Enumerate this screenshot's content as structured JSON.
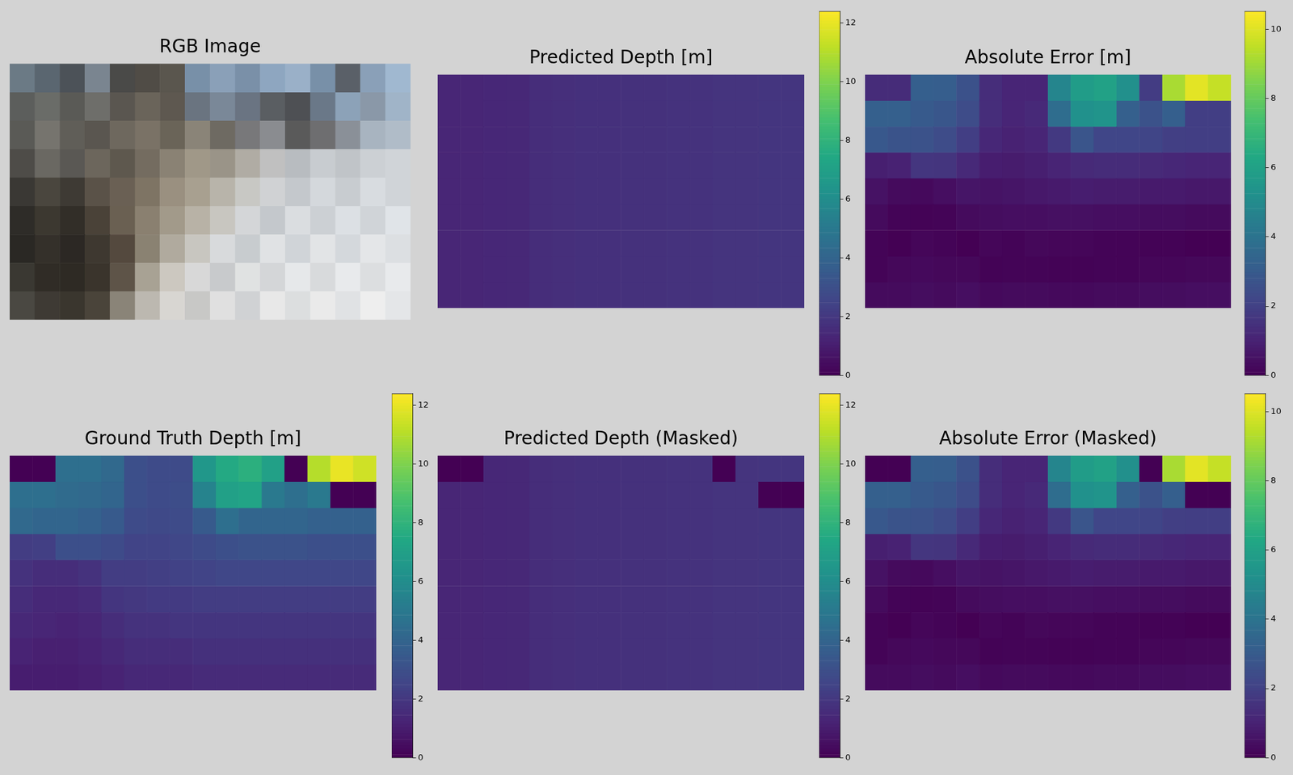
{
  "chart_data": [
    {
      "type": "image",
      "title": "RGB Image",
      "tick_labels": false,
      "colors": [
        [
          "#6b7a85",
          "#5a6670",
          "#4c5258",
          "#7a8590",
          "#4a4a48",
          "#504c46",
          "#5a564e",
          "#7890a8",
          "#8aa0b8",
          "#7a90a8",
          "#8ea6c0",
          "#9ab0c8",
          "#7890a8",
          "#5a6068",
          "#8aa0b8",
          "#a0b8d0"
        ],
        [
          "#5c5e5c",
          "#6a6c68",
          "#5a5a56",
          "#6e6e6a",
          "#5a5650",
          "#6a645a",
          "#5e5850",
          "#6a7480",
          "#7a8898",
          "#6a7482",
          "#5a5e62",
          "#4e5054",
          "#6a7888",
          "#8ca2b8",
          "#8a98a8",
          "#a0b4c8"
        ],
        [
          "#5a5a56",
          "#76746e",
          "#605e58",
          "#5a5650",
          "#6e685e",
          "#7a7266",
          "#6a6458",
          "#8a8478",
          "#6e6a62",
          "#78787a",
          "#8a8c90",
          "#5a5a5a",
          "#6e6e70",
          "#8a9098",
          "#a8b4c0",
          "#b0bcc8"
        ],
        [
          "#4e4c48",
          "#6a6862",
          "#5a5854",
          "#6c665c",
          "#5e584e",
          "#746c60",
          "#8a8274",
          "#a09888",
          "#9a9488",
          "#b0aca4",
          "#c0c0c0",
          "#b8bcc0",
          "#c8ccd0",
          "#c0c4c8",
          "#ccd0d4",
          "#d0d4d8"
        ],
        [
          "#3a3834",
          "#4a463e",
          "#3e3a34",
          "#5a5248",
          "#6a6054",
          "#7e7464",
          "#9a9080",
          "#a8a090",
          "#b8b4aa",
          "#c8c8c4",
          "#d0d2d4",
          "#c4c8cc",
          "#d4d8dc",
          "#c8ccd0",
          "#d8dce0",
          "#d0d4d8"
        ],
        [
          "#2e2c28",
          "#3c3830",
          "#322e28",
          "#4a4238",
          "#6a6052",
          "#8a8070",
          "#a29a8a",
          "#b8b2a6",
          "#c8c6c0",
          "#d4d6d8",
          "#c4c8cc",
          "#dadde0",
          "#ccd0d4",
          "#dce0e4",
          "#d0d4d8",
          "#e0e4e8"
        ],
        [
          "#2a2824",
          "#34302a",
          "#2c2824",
          "#3e3830",
          "#54493e",
          "#8a8272",
          "#b0aa9e",
          "#c8c6c0",
          "#d8dadc",
          "#c8cccf",
          "#e0e2e4",
          "#d0d4d8",
          "#e2e4e6",
          "#d4d8dc",
          "#e4e6e8",
          "#dcdfe2"
        ],
        [
          "#3a3832",
          "#302c26",
          "#2e2a24",
          "#3a342c",
          "#5e5448",
          "#a8a294",
          "#ccc8c0",
          "#d8d8d8",
          "#c8cacc",
          "#e0e2e2",
          "#d4d6d8",
          "#e6e8ea",
          "#d8dadc",
          "#e8eaec",
          "#dcdee0",
          "#e8eaec"
        ],
        [
          "#4a4842",
          "#3e3a34",
          "#3a362e",
          "#4a443a",
          "#8a8478",
          "#bcb8b0",
          "#d8d6d2",
          "#c8c8c6",
          "#e0e0e0",
          "#d0d2d4",
          "#e8e8e8",
          "#dcdedf",
          "#eaeaea",
          "#e0e2e4",
          "#eeeeee",
          "#e4e6e8"
        ]
      ]
    },
    {
      "type": "heatmap",
      "title": "Predicted Depth [m]",
      "tick_labels": false,
      "cells": [
        [
          1.3,
          1.3,
          1.35,
          1.4,
          1.6,
          1.65,
          1.7,
          1.7,
          1.75,
          1.75,
          1.8,
          1.8,
          1.85,
          1.85,
          1.9,
          1.9
        ],
        [
          1.3,
          1.3,
          1.35,
          1.4,
          1.6,
          1.65,
          1.7,
          1.7,
          1.75,
          1.75,
          1.8,
          1.8,
          1.85,
          1.85,
          1.9,
          1.9
        ],
        [
          1.3,
          1.3,
          1.35,
          1.4,
          1.6,
          1.65,
          1.7,
          1.7,
          1.75,
          1.75,
          1.8,
          1.8,
          1.85,
          1.85,
          1.9,
          1.9
        ],
        [
          1.3,
          1.3,
          1.35,
          1.4,
          1.6,
          1.65,
          1.7,
          1.7,
          1.75,
          1.75,
          1.8,
          1.8,
          1.85,
          1.85,
          1.9,
          1.9
        ],
        [
          1.3,
          1.3,
          1.35,
          1.4,
          1.6,
          1.65,
          1.7,
          1.7,
          1.75,
          1.75,
          1.8,
          1.8,
          1.85,
          1.85,
          1.9,
          1.9
        ],
        [
          1.3,
          1.3,
          1.35,
          1.4,
          1.6,
          1.65,
          1.7,
          1.7,
          1.75,
          1.75,
          1.8,
          1.8,
          1.85,
          1.85,
          1.9,
          1.9
        ],
        [
          1.3,
          1.3,
          1.35,
          1.4,
          1.6,
          1.65,
          1.7,
          1.7,
          1.75,
          1.75,
          1.8,
          1.8,
          1.85,
          1.85,
          1.9,
          1.9
        ],
        [
          1.3,
          1.3,
          1.35,
          1.4,
          1.6,
          1.65,
          1.7,
          1.7,
          1.75,
          1.75,
          1.8,
          1.8,
          1.85,
          1.85,
          1.9,
          1.9
        ],
        [
          1.3,
          1.3,
          1.35,
          1.4,
          1.6,
          1.65,
          1.7,
          1.7,
          1.75,
          1.75,
          1.8,
          1.8,
          1.85,
          1.85,
          1.9,
          1.9
        ]
      ],
      "colorbar": {
        "range": [
          0,
          12.39
        ],
        "ticks": [
          0,
          2,
          4,
          6,
          8,
          10,
          12
        ]
      }
    },
    {
      "type": "heatmap",
      "title": "Absolute Error [m]",
      "tick_labels": false,
      "cells": [
        [
          1.3,
          1.3,
          3.15,
          3.1,
          2.6,
          1.35,
          1.1,
          1.1,
          4.75,
          5.75,
          6.0,
          5.2,
          1.85,
          9.15,
          10.1,
          9.6
        ],
        [
          3.2,
          3.2,
          2.95,
          2.8,
          2.4,
          1.35,
          1.1,
          1.2,
          3.75,
          5.25,
          5.4,
          3.2,
          2.65,
          3.15,
          1.9,
          1.9
        ],
        [
          2.9,
          2.7,
          2.65,
          2.4,
          1.9,
          1.15,
          1.0,
          1.1,
          1.75,
          2.75,
          2.2,
          2.2,
          2.15,
          1.95,
          1.9,
          1.9
        ],
        [
          0.9,
          1.0,
          1.65,
          1.6,
          1.2,
          0.85,
          0.8,
          0.9,
          1.05,
          1.25,
          1.3,
          1.3,
          1.25,
          1.15,
          1.1,
          1.1
        ],
        [
          0.5,
          0.3,
          0.25,
          0.4,
          0.6,
          0.55,
          0.6,
          0.7,
          0.75,
          0.85,
          0.8,
          0.8,
          0.75,
          0.75,
          0.7,
          0.7
        ],
        [
          0.3,
          0.1,
          0.05,
          0.1,
          0.3,
          0.35,
          0.4,
          0.4,
          0.45,
          0.45,
          0.4,
          0.4,
          0.35,
          0.35,
          0.3,
          0.3
        ],
        [
          0.1,
          0,
          0.15,
          0.1,
          0,
          0.15,
          0.1,
          0.2,
          0.15,
          0.15,
          0.1,
          0.1,
          0.05,
          0.05,
          0,
          0
        ],
        [
          0.1,
          0.2,
          0.25,
          0.2,
          0.2,
          0.05,
          0.1,
          0.1,
          0.05,
          0.05,
          0.1,
          0.1,
          0.15,
          0.15,
          0.2,
          0.2
        ],
        [
          0.3,
          0.3,
          0.35,
          0.3,
          0.4,
          0.25,
          0.3,
          0.3,
          0.25,
          0.25,
          0.3,
          0.3,
          0.35,
          0.35,
          0.4,
          0.4
        ]
      ],
      "colorbar": {
        "range": [
          0,
          10.52
        ],
        "ticks": [
          0,
          2,
          4,
          6,
          8,
          10
        ]
      }
    },
    {
      "type": "heatmap",
      "title": "Ground Truth Depth [m]",
      "tick_labels": false,
      "cells": [
        [
          0,
          0,
          4.5,
          4.5,
          4.2,
          3.0,
          2.8,
          2.8,
          6.5,
          7.5,
          7.8,
          7.0,
          0,
          11.0,
          12.0,
          11.5
        ],
        [
          4.5,
          4.5,
          4.3,
          4.2,
          4.0,
          3.0,
          2.8,
          2.9,
          5.5,
          7.0,
          7.2,
          5.0,
          4.5,
          5.0,
          0,
          0
        ],
        [
          4.2,
          4.0,
          4.0,
          3.8,
          3.5,
          2.8,
          2.7,
          2.8,
          3.5,
          4.5,
          4.0,
          4.0,
          4.0,
          3.8,
          3.8,
          3.8
        ],
        [
          2.2,
          2.3,
          3.0,
          3.0,
          2.8,
          2.5,
          2.5,
          2.6,
          2.8,
          3.0,
          3.1,
          3.1,
          3.1,
          3.0,
          3.0,
          3.0
        ],
        [
          1.8,
          1.6,
          1.6,
          1.8,
          2.2,
          2.2,
          2.3,
          2.4,
          2.5,
          2.6,
          2.6,
          2.6,
          2.6,
          2.6,
          2.6,
          2.6
        ],
        [
          1.6,
          1.4,
          1.4,
          1.5,
          1.9,
          2.0,
          2.1,
          2.1,
          2.2,
          2.2,
          2.2,
          2.2,
          2.2,
          2.2,
          2.2,
          2.2
        ],
        [
          1.4,
          1.3,
          1.2,
          1.3,
          1.6,
          1.8,
          1.8,
          1.9,
          1.9,
          1.9,
          1.9,
          1.9,
          1.9,
          1.9,
          1.9,
          1.9
        ],
        [
          1.2,
          1.1,
          1.1,
          1.2,
          1.4,
          1.6,
          1.6,
          1.6,
          1.7,
          1.7,
          1.7,
          1.7,
          1.7,
          1.7,
          1.7,
          1.7
        ],
        [
          1.0,
          1.0,
          1.0,
          1.1,
          1.2,
          1.4,
          1.4,
          1.4,
          1.5,
          1.5,
          1.5,
          1.5,
          1.5,
          1.5,
          1.5,
          1.5
        ]
      ],
      "colorbar": {
        "range": [
          0,
          12.39
        ],
        "ticks": [
          0,
          2,
          4,
          6,
          8,
          10,
          12
        ]
      }
    },
    {
      "type": "heatmap",
      "title": "Predicted Depth (Masked)",
      "tick_labels": false,
      "cells": [
        [
          0,
          0,
          1.35,
          1.4,
          1.6,
          1.65,
          1.7,
          1.7,
          1.75,
          1.75,
          1.8,
          1.8,
          0,
          1.85,
          1.9,
          1.9
        ],
        [
          1.3,
          1.3,
          1.35,
          1.4,
          1.6,
          1.65,
          1.7,
          1.7,
          1.75,
          1.75,
          1.8,
          1.8,
          1.85,
          1.85,
          0,
          0
        ],
        [
          1.3,
          1.3,
          1.35,
          1.4,
          1.6,
          1.65,
          1.7,
          1.7,
          1.75,
          1.75,
          1.8,
          1.8,
          1.85,
          1.85,
          1.9,
          1.9
        ],
        [
          1.3,
          1.3,
          1.35,
          1.4,
          1.6,
          1.65,
          1.7,
          1.7,
          1.75,
          1.75,
          1.8,
          1.8,
          1.85,
          1.85,
          1.9,
          1.9
        ],
        [
          1.3,
          1.3,
          1.35,
          1.4,
          1.6,
          1.65,
          1.7,
          1.7,
          1.75,
          1.75,
          1.8,
          1.8,
          1.85,
          1.85,
          1.9,
          1.9
        ],
        [
          1.3,
          1.3,
          1.35,
          1.4,
          1.6,
          1.65,
          1.7,
          1.7,
          1.75,
          1.75,
          1.8,
          1.8,
          1.85,
          1.85,
          1.9,
          1.9
        ],
        [
          1.3,
          1.3,
          1.35,
          1.4,
          1.6,
          1.65,
          1.7,
          1.7,
          1.75,
          1.75,
          1.8,
          1.8,
          1.85,
          1.85,
          1.9,
          1.9
        ],
        [
          1.3,
          1.3,
          1.35,
          1.4,
          1.6,
          1.65,
          1.7,
          1.7,
          1.75,
          1.75,
          1.8,
          1.8,
          1.85,
          1.85,
          1.9,
          1.9
        ],
        [
          1.3,
          1.3,
          1.35,
          1.4,
          1.6,
          1.65,
          1.7,
          1.7,
          1.75,
          1.75,
          1.8,
          1.8,
          1.85,
          1.85,
          1.9,
          1.9
        ]
      ],
      "colorbar": {
        "range": [
          0,
          12.39
        ],
        "ticks": [
          0,
          2,
          4,
          6,
          8,
          10,
          12
        ]
      }
    },
    {
      "type": "heatmap",
      "title": "Absolute Error (Masked)",
      "tick_labels": false,
      "cells": [
        [
          0,
          0,
          3.15,
          3.1,
          2.6,
          1.35,
          1.1,
          1.1,
          4.75,
          5.75,
          6.0,
          5.2,
          0,
          9.15,
          10.1,
          9.6
        ],
        [
          3.2,
          3.2,
          2.95,
          2.8,
          2.4,
          1.35,
          1.1,
          1.2,
          3.75,
          5.25,
          5.4,
          3.2,
          2.65,
          3.15,
          0,
          0
        ],
        [
          2.9,
          2.7,
          2.65,
          2.4,
          1.9,
          1.15,
          1.0,
          1.1,
          1.75,
          2.75,
          2.2,
          2.2,
          2.15,
          1.95,
          1.9,
          1.9
        ],
        [
          0.9,
          1.0,
          1.65,
          1.6,
          1.2,
          0.85,
          0.8,
          0.9,
          1.05,
          1.25,
          1.3,
          1.3,
          1.25,
          1.15,
          1.1,
          1.1
        ],
        [
          0.5,
          0.3,
          0.25,
          0.4,
          0.6,
          0.55,
          0.6,
          0.7,
          0.75,
          0.85,
          0.8,
          0.8,
          0.75,
          0.75,
          0.7,
          0.7
        ],
        [
          0.3,
          0.1,
          0.05,
          0.1,
          0.3,
          0.35,
          0.4,
          0.4,
          0.45,
          0.45,
          0.4,
          0.4,
          0.35,
          0.35,
          0.3,
          0.3
        ],
        [
          0.1,
          0,
          0.15,
          0.1,
          0,
          0.15,
          0.1,
          0.2,
          0.15,
          0.15,
          0.1,
          0.1,
          0.05,
          0.05,
          0,
          0
        ],
        [
          0.1,
          0.2,
          0.25,
          0.2,
          0.2,
          0.05,
          0.1,
          0.1,
          0.05,
          0.05,
          0.1,
          0.1,
          0.15,
          0.15,
          0.2,
          0.2
        ],
        [
          0.3,
          0.3,
          0.35,
          0.3,
          0.4,
          0.25,
          0.3,
          0.3,
          0.25,
          0.25,
          0.3,
          0.3,
          0.35,
          0.35,
          0.4,
          0.4
        ]
      ],
      "colorbar": {
        "range": [
          0,
          10.52
        ],
        "ticks": [
          0,
          2,
          4,
          6,
          8,
          10
        ]
      }
    }
  ]
}
